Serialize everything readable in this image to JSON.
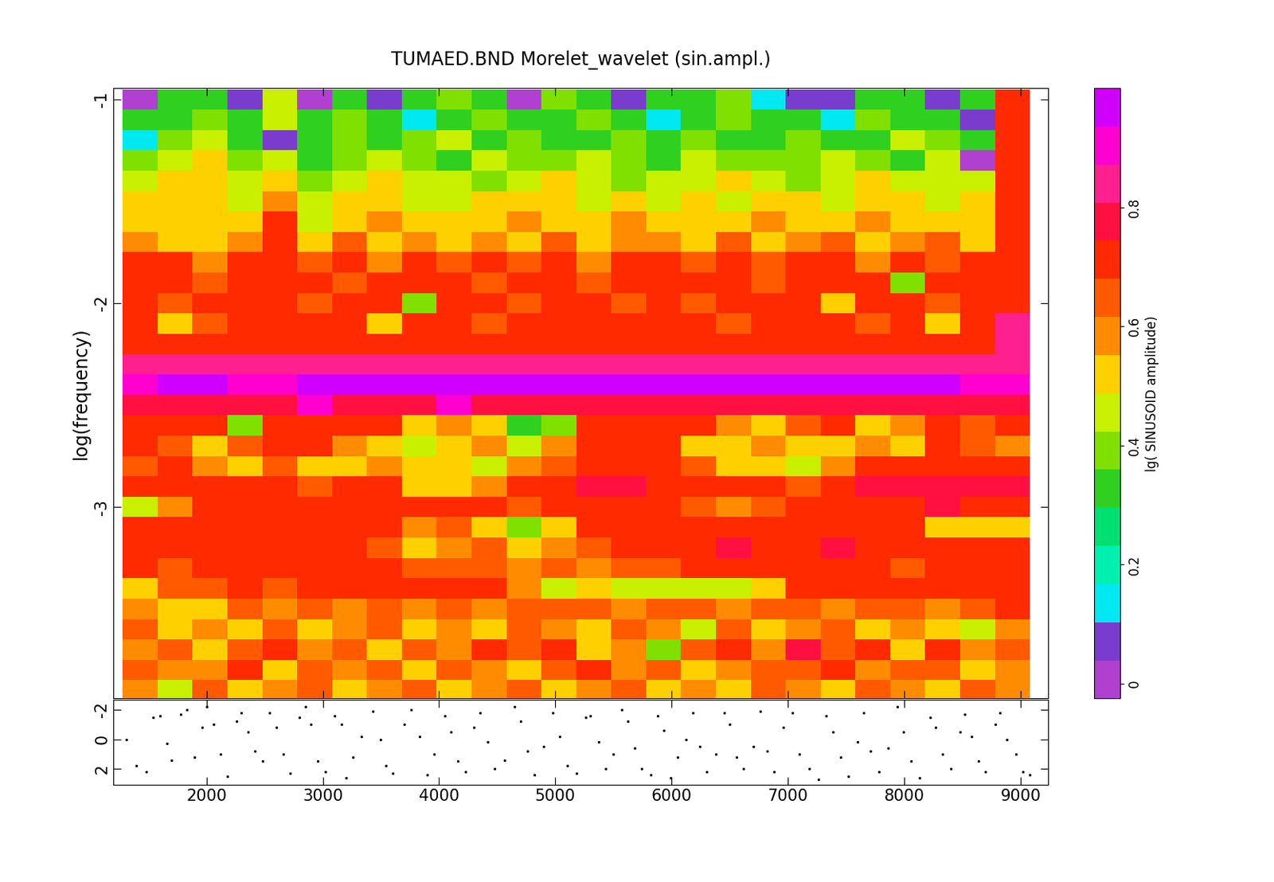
{
  "chart_data": [
    {
      "type": "heatmap",
      "title": "TUMAED.BND Morelet_wavelet (sin.ampl.)",
      "y_label": "log(frequency)",
      "tick_labels": "y",
      "x": [
        1430,
        1730,
        2030,
        2330,
        2630,
        2930,
        3230,
        3530,
        3830,
        4130,
        4430,
        4730,
        5030,
        5330,
        5630,
        5930,
        6230,
        6530,
        6830,
        7130,
        7430,
        7730,
        8030,
        8330,
        8630,
        8930
      ],
      "y": [
        -1.0,
        -1.1,
        -1.2,
        -1.3,
        -1.4,
        -1.5,
        -1.6,
        -1.7,
        -1.8,
        -1.9,
        -2.0,
        -2.1,
        -2.2,
        -2.3,
        -2.4,
        -2.5,
        -2.6,
        -2.7,
        -2.8,
        -2.9,
        -3.0,
        -3.1,
        -3.2,
        -3.3,
        -3.4,
        -3.5,
        -3.6,
        -3.7,
        -3.8,
        -3.9
      ],
      "values": [
        [
          0.02,
          0.35,
          0.3,
          0.05,
          0.45,
          0.02,
          0.35,
          0.1,
          0.3,
          0.38,
          0.35,
          0.02,
          0.4,
          0.3,
          0.1,
          0.35,
          0.3,
          0.38,
          0.12,
          0.1,
          0.05,
          0.3,
          0.35,
          0.1,
          0.3,
          0.72
        ],
        [
          0.3,
          0.35,
          0.4,
          0.3,
          0.45,
          0.32,
          0.38,
          0.3,
          0.15,
          0.35,
          0.4,
          0.3,
          0.35,
          0.38,
          0.3,
          0.12,
          0.35,
          0.4,
          0.3,
          0.35,
          0.15,
          0.38,
          0.3,
          0.35,
          0.1,
          0.7
        ],
        [
          0.15,
          0.4,
          0.45,
          0.35,
          0.1,
          0.3,
          0.4,
          0.35,
          0.38,
          0.45,
          0.35,
          0.4,
          0.3,
          0.35,
          0.4,
          0.32,
          0.38,
          0.3,
          0.35,
          0.4,
          0.3,
          0.35,
          0.45,
          0.38,
          0.3,
          0.72
        ],
        [
          0.4,
          0.45,
          0.5,
          0.38,
          0.45,
          0.35,
          0.42,
          0.45,
          0.4,
          0.35,
          0.45,
          0.4,
          0.38,
          0.45,
          0.4,
          0.35,
          0.45,
          0.4,
          0.42,
          0.38,
          0.45,
          0.4,
          0.35,
          0.45,
          0.02,
          0.7
        ],
        [
          0.45,
          0.5,
          0.55,
          0.45,
          0.5,
          0.4,
          0.45,
          0.52,
          0.45,
          0.48,
          0.4,
          0.45,
          0.5,
          0.45,
          0.42,
          0.48,
          0.45,
          0.5,
          0.45,
          0.42,
          0.48,
          0.5,
          0.45,
          0.48,
          0.45,
          0.7
        ],
        [
          0.5,
          0.55,
          0.52,
          0.48,
          0.6,
          0.45,
          0.5,
          0.55,
          0.48,
          0.45,
          0.52,
          0.5,
          0.55,
          0.48,
          0.5,
          0.45,
          0.52,
          0.48,
          0.55,
          0.5,
          0.48,
          0.55,
          0.5,
          0.45,
          0.52,
          0.72
        ],
        [
          0.55,
          0.52,
          0.55,
          0.5,
          0.72,
          0.48,
          0.55,
          0.6,
          0.52,
          0.55,
          0.5,
          0.6,
          0.52,
          0.55,
          0.58,
          0.5,
          0.55,
          0.52,
          0.6,
          0.55,
          0.5,
          0.58,
          0.52,
          0.55,
          0.5,
          0.7
        ],
        [
          0.58,
          0.55,
          0.5,
          0.6,
          0.7,
          0.55,
          0.62,
          0.55,
          0.58,
          0.52,
          0.6,
          0.55,
          0.65,
          0.55,
          0.6,
          0.58,
          0.52,
          0.62,
          0.55,
          0.6,
          0.65,
          0.55,
          0.58,
          0.62,
          0.55,
          0.72
        ],
        [
          0.72,
          0.7,
          0.6,
          0.72,
          0.7,
          0.65,
          0.72,
          0.6,
          0.7,
          0.62,
          0.72,
          0.65,
          0.7,
          0.6,
          0.72,
          0.68,
          0.62,
          0.72,
          0.65,
          0.7,
          0.72,
          0.6,
          0.7,
          0.65,
          0.72,
          0.7
        ],
        [
          0.7,
          0.72,
          0.65,
          0.7,
          0.72,
          0.7,
          0.65,
          0.72,
          0.68,
          0.7,
          0.62,
          0.72,
          0.7,
          0.65,
          0.72,
          0.7,
          0.68,
          0.72,
          0.62,
          0.7,
          0.72,
          0.68,
          0.4,
          0.7,
          0.72,
          0.7
        ],
        [
          0.68,
          0.62,
          0.7,
          0.72,
          0.7,
          0.65,
          0.72,
          0.7,
          0.38,
          0.68,
          0.72,
          0.62,
          0.7,
          0.72,
          0.65,
          0.7,
          0.62,
          0.72,
          0.68,
          0.7,
          0.55,
          0.72,
          0.7,
          0.62,
          0.72,
          0.7
        ],
        [
          0.72,
          0.55,
          0.62,
          0.7,
          0.72,
          0.68,
          0.7,
          0.55,
          0.72,
          0.7,
          0.62,
          0.72,
          0.7,
          0.68,
          0.72,
          0.7,
          0.72,
          0.65,
          0.7,
          0.72,
          0.68,
          0.62,
          0.72,
          0.55,
          0.7,
          0.82
        ],
        [
          0.72,
          0.7,
          0.72,
          0.68,
          0.72,
          0.7,
          0.72,
          0.72,
          0.7,
          0.68,
          0.72,
          0.7,
          0.72,
          0.72,
          0.7,
          0.72,
          0.72,
          0.7,
          0.72,
          0.72,
          0.7,
          0.72,
          0.7,
          0.72,
          0.72,
          0.85
        ],
        [
          0.85,
          0.86,
          0.85,
          0.84,
          0.86,
          0.85,
          0.85,
          0.86,
          0.84,
          0.85,
          0.86,
          0.85,
          0.85,
          0.84,
          0.86,
          0.85,
          0.85,
          0.86,
          0.85,
          0.84,
          0.86,
          0.85,
          0.85,
          0.86,
          0.85,
          0.86
        ],
        [
          0.92,
          0.97,
          0.97,
          0.92,
          0.92,
          0.96,
          0.97,
          0.97,
          0.97,
          0.97,
          0.97,
          0.97,
          0.97,
          0.97,
          0.97,
          0.97,
          0.97,
          0.97,
          0.97,
          0.97,
          0.97,
          0.97,
          0.97,
          0.97,
          0.92,
          0.92
        ],
        [
          0.8,
          0.8,
          0.8,
          0.8,
          0.8,
          0.92,
          0.8,
          0.8,
          0.8,
          0.92,
          0.8,
          0.8,
          0.8,
          0.8,
          0.8,
          0.8,
          0.8,
          0.8,
          0.8,
          0.8,
          0.8,
          0.8,
          0.8,
          0.8,
          0.8,
          0.8
        ],
        [
          0.72,
          0.7,
          0.72,
          0.4,
          0.72,
          0.7,
          0.72,
          0.7,
          0.55,
          0.6,
          0.5,
          0.35,
          0.4,
          0.72,
          0.7,
          0.72,
          0.7,
          0.6,
          0.5,
          0.65,
          0.7,
          0.55,
          0.6,
          0.7,
          0.65,
          0.7
        ],
        [
          0.7,
          0.65,
          0.55,
          0.62,
          0.7,
          0.72,
          0.6,
          0.5,
          0.45,
          0.55,
          0.6,
          0.45,
          0.6,
          0.7,
          0.72,
          0.7,
          0.55,
          0.5,
          0.6,
          0.55,
          0.5,
          0.6,
          0.55,
          0.7,
          0.65,
          0.6
        ],
        [
          0.65,
          0.72,
          0.6,
          0.55,
          0.62,
          0.5,
          0.55,
          0.6,
          0.52,
          0.5,
          0.45,
          0.6,
          0.65,
          0.72,
          0.72,
          0.7,
          0.62,
          0.55,
          0.5,
          0.45,
          0.6,
          0.7,
          0.72,
          0.7,
          0.68,
          0.72
        ],
        [
          0.72,
          0.72,
          0.7,
          0.72,
          0.72,
          0.65,
          0.72,
          0.72,
          0.55,
          0.52,
          0.6,
          0.72,
          0.72,
          0.78,
          0.75,
          0.72,
          0.72,
          0.7,
          0.72,
          0.65,
          0.72,
          0.78,
          0.78,
          0.75,
          0.78,
          0.75
        ],
        [
          0.45,
          0.6,
          0.72,
          0.72,
          0.72,
          0.72,
          0.72,
          0.72,
          0.72,
          0.72,
          0.7,
          0.65,
          0.7,
          0.72,
          0.72,
          0.7,
          0.62,
          0.6,
          0.62,
          0.72,
          0.72,
          0.7,
          0.72,
          0.75,
          0.72,
          0.7
        ],
        [
          0.72,
          0.7,
          0.72,
          0.72,
          0.72,
          0.72,
          0.72,
          0.7,
          0.6,
          0.62,
          0.5,
          0.4,
          0.55,
          0.7,
          0.72,
          0.72,
          0.72,
          0.72,
          0.72,
          0.72,
          0.72,
          0.72,
          0.72,
          0.55,
          0.52,
          0.5
        ],
        [
          0.72,
          0.72,
          0.72,
          0.72,
          0.72,
          0.72,
          0.7,
          0.62,
          0.55,
          0.6,
          0.62,
          0.55,
          0.6,
          0.65,
          0.7,
          0.72,
          0.72,
          0.75,
          0.72,
          0.72,
          0.75,
          0.72,
          0.72,
          0.72,
          0.7,
          0.72
        ],
        [
          0.7,
          0.65,
          0.72,
          0.72,
          0.72,
          0.7,
          0.72,
          0.72,
          0.65,
          0.62,
          0.65,
          0.6,
          0.62,
          0.6,
          0.62,
          0.65,
          0.7,
          0.72,
          0.7,
          0.72,
          0.7,
          0.72,
          0.65,
          0.7,
          0.72,
          0.7
        ],
        [
          0.55,
          0.62,
          0.65,
          0.7,
          0.62,
          0.72,
          0.7,
          0.72,
          0.7,
          0.72,
          0.7,
          0.6,
          0.45,
          0.5,
          0.45,
          0.45,
          0.48,
          0.45,
          0.5,
          0.68,
          0.72,
          0.7,
          0.72,
          0.72,
          0.7,
          0.72
        ],
        [
          0.6,
          0.52,
          0.55,
          0.62,
          0.6,
          0.65,
          0.6,
          0.62,
          0.58,
          0.62,
          0.6,
          0.62,
          0.65,
          0.62,
          0.6,
          0.65,
          0.62,
          0.6,
          0.65,
          0.62,
          0.6,
          0.65,
          0.62,
          0.6,
          0.62,
          0.7
        ],
        [
          0.62,
          0.55,
          0.6,
          0.52,
          0.62,
          0.55,
          0.6,
          0.62,
          0.55,
          0.6,
          0.52,
          0.62,
          0.6,
          0.55,
          0.62,
          0.58,
          0.45,
          0.62,
          0.55,
          0.6,
          0.62,
          0.52,
          0.6,
          0.55,
          0.45,
          0.6
        ],
        [
          0.6,
          0.65,
          0.55,
          0.62,
          0.7,
          0.6,
          0.62,
          0.55,
          0.65,
          0.6,
          0.7,
          0.62,
          0.72,
          0.55,
          0.6,
          0.4,
          0.62,
          0.72,
          0.6,
          0.75,
          0.62,
          0.72,
          0.55,
          0.72,
          0.6,
          0.62
        ],
        [
          0.62,
          0.58,
          0.6,
          0.7,
          0.55,
          0.65,
          0.6,
          0.62,
          0.55,
          0.65,
          0.6,
          0.55,
          0.62,
          0.7,
          0.6,
          0.62,
          0.55,
          0.6,
          0.65,
          0.62,
          0.7,
          0.6,
          0.62,
          0.65,
          0.55,
          0.6
        ],
        [
          0.6,
          0.45,
          0.62,
          0.55,
          0.6,
          0.62,
          0.5,
          0.6,
          0.62,
          0.55,
          0.6,
          0.62,
          0.55,
          0.6,
          0.62,
          0.52,
          0.6,
          0.55,
          0.62,
          0.6,
          0.55,
          0.62,
          0.6,
          0.55,
          0.62,
          0.6
        ]
      ],
      "xlim": [
        1200,
        9240
      ],
      "ylim": [
        -3.94,
        -0.945
      ],
      "xticks": [
        2000,
        3000,
        4000,
        5000,
        6000,
        7000,
        8000,
        9000
      ],
      "yticks": [
        -1,
        -2,
        -3
      ],
      "colors": [
        "#b040d0",
        "#7a3ccc",
        "#00e8f0",
        "#00f0b0",
        "#00e070",
        "#30d020",
        "#80e000",
        "#c8f000",
        "#ffd000",
        "#ff8c00",
        "#ff5a00",
        "#ff2a00",
        "#ff1040",
        "#ff2090",
        "#ff00d0",
        "#d000ff"
      ],
      "color_range": [
        -0.025,
        1.0
      ],
      "color_ticks": [
        0,
        0.2,
        0.4,
        0.6,
        0.8
      ],
      "color_label": "lg( SINUSOID amplitude)"
    },
    {
      "type": "scatter",
      "color": "#000000",
      "marker": ".",
      "x": [
        1310,
        1400,
        1480,
        1540,
        1600,
        1660,
        1700,
        1780,
        1830,
        1900,
        1960,
        2000,
        2060,
        2120,
        2180,
        2260,
        2300,
        2360,
        2420,
        2480,
        2540,
        2600,
        2660,
        2720,
        2800,
        2850,
        2900,
        2960,
        3020,
        3100,
        3160,
        3200,
        3260,
        3330,
        3430,
        3500,
        3540,
        3600,
        3700,
        3760,
        3830,
        3900,
        3960,
        4050,
        4100,
        4160,
        4230,
        4300,
        4350,
        4420,
        4480,
        4560,
        4650,
        4700,
        4760,
        4820,
        4900,
        4980,
        5040,
        5100,
        5180,
        5260,
        5300,
        5370,
        5430,
        5500,
        5570,
        5620,
        5680,
        5740,
        5820,
        5880,
        5930,
        5990,
        6050,
        6120,
        6180,
        6240,
        6300,
        6380,
        6450,
        6500,
        6560,
        6620,
        6700,
        6760,
        6820,
        6880,
        6960,
        7040,
        7100,
        7180,
        7260,
        7330,
        7390,
        7450,
        7520,
        7600,
        7650,
        7710,
        7780,
        7860,
        7940,
        7990,
        8060,
        8130,
        8220,
        8270,
        8330,
        8400,
        8480,
        8520,
        8580,
        8640,
        8700,
        8780,
        8820,
        8880,
        8960,
        9020,
        9080
      ],
      "values": [
        0.0,
        1.8,
        2.2,
        -1.5,
        -1.6,
        0.3,
        1.4,
        -1.7,
        -2.0,
        1.2,
        -0.8,
        -2.2,
        -1.0,
        1.0,
        2.5,
        -1.2,
        -1.8,
        -0.5,
        0.8,
        1.5,
        -1.8,
        -0.8,
        1.0,
        2.3,
        -1.5,
        -2.2,
        -1.0,
        1.5,
        2.2,
        -1.6,
        -1.0,
        2.6,
        1.2,
        -0.2,
        -1.9,
        0.0,
        1.8,
        2.3,
        -1.0,
        -2.0,
        -0.2,
        2.4,
        1.0,
        -1.6,
        -0.5,
        1.5,
        2.2,
        -0.8,
        -1.8,
        0.2,
        2.0,
        1.4,
        -2.2,
        -1.2,
        0.8,
        2.4,
        0.5,
        -1.8,
        -0.2,
        1.8,
        2.3,
        -1.5,
        -1.6,
        0.2,
        2.0,
        1.0,
        -2.0,
        -1.2,
        0.6,
        2.0,
        2.4,
        -1.6,
        -0.6,
        2.6,
        1.2,
        0.0,
        -1.8,
        0.5,
        2.2,
        1.0,
        -1.8,
        -1.0,
        1.2,
        2.0,
        0.5,
        -1.9,
        0.8,
        2.2,
        -0.8,
        -1.8,
        1.0,
        2.0,
        2.7,
        -1.6,
        -0.5,
        1.2,
        2.5,
        0.2,
        -1.8,
        0.8,
        2.2,
        0.6,
        -2.2,
        -0.5,
        1.5,
        2.6,
        -1.5,
        -0.8,
        1.0,
        2.0,
        -0.5,
        -1.7,
        -0.2,
        1.5,
        2.2,
        -1.0,
        -1.8,
        0.0,
        1.0,
        2.2,
        2.4
      ],
      "xlim": [
        1200,
        9240
      ],
      "ylim": [
        3.1,
        -2.7
      ],
      "xticks": [
        2000,
        3000,
        4000,
        5000,
        6000,
        7000,
        8000,
        9000
      ],
      "yticks": [
        -2,
        0,
        2
      ]
    }
  ]
}
